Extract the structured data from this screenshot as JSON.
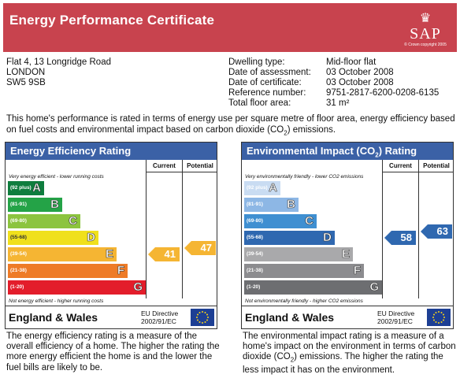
{
  "header": {
    "title": "Energy Performance Certificate",
    "logo_text": "SAP",
    "logo_copyright": "© Crown copyright 2005"
  },
  "address": [
    "Flat 4, 13 Longridge Road",
    "LONDON",
    "SW5 9SB"
  ],
  "details": [
    {
      "label": "Dwelling type:",
      "value": "Mid-floor flat"
    },
    {
      "label": "Date of assessment:",
      "value": "03 October 2008"
    },
    {
      "label": "Date of certificate:",
      "value": "03 October 2008"
    },
    {
      "label": "Reference number:",
      "value": "9751-2817-6200-0208-6135"
    },
    {
      "label": "Total floor area:",
      "value": "31 m²"
    }
  ],
  "intro": {
    "before": "This home's performance is rated in terms of energy use per square metre of floor area, energy efficiency based on fuel costs and environmental impact based on carbon dioxide (CO",
    "sub": "2",
    "after": ") emissions."
  },
  "columns": {
    "current": "Current",
    "potential": "Potential"
  },
  "energy": {
    "title": "Energy Efficiency Rating",
    "top_note": "Very energy efficient - lower running costs",
    "bottom_note": "Not energy efficient - higher running costs",
    "bands": [
      {
        "range": "(92 plus)",
        "letter": "A",
        "color": "#0f7d3e"
      },
      {
        "range": "(81-91)",
        "letter": "B",
        "color": "#24a347"
      },
      {
        "range": "(69-80)",
        "letter": "C",
        "color": "#8cc43f"
      },
      {
        "range": "(55-68)",
        "letter": "D",
        "color": "#f0e01c"
      },
      {
        "range": "(39-54)",
        "letter": "E",
        "color": "#f5b533"
      },
      {
        "range": "(21-38)",
        "letter": "F",
        "color": "#ee7b27"
      },
      {
        "range": "(1-20)",
        "letter": "G",
        "color": "#e31d2b"
      }
    ],
    "current": {
      "value": "41",
      "band_index": 4,
      "color": "#f5b533"
    },
    "potential": {
      "value": "47",
      "band_index": 4,
      "color": "#f5b533"
    },
    "region": "England & Wales",
    "directive": [
      "EU Directive",
      "2002/91/EC"
    ],
    "description": "The energy efficiency rating is a measure of the overall efficiency of a home. The higher the rating the more energy efficient the home is and the lower the fuel bills are likely to be."
  },
  "environment": {
    "title_before": "Environmental Impact (CO",
    "title_sub": "2",
    "title_after": ") Rating",
    "top_note": "Very environmentally friendly - lower CO2 emissions",
    "bottom_note": "Not environmentally friendly - higher CO2 emissions",
    "bands": [
      {
        "range": "(92 plus)",
        "letter": "A",
        "color": "#c9dcf2"
      },
      {
        "range": "(81-91)",
        "letter": "B",
        "color": "#8db7e5"
      },
      {
        "range": "(69-80)",
        "letter": "C",
        "color": "#3f8fd1"
      },
      {
        "range": "(55-68)",
        "letter": "D",
        "color": "#2f68b0"
      },
      {
        "range": "(39-54)",
        "letter": "E",
        "color": "#a9a9ab"
      },
      {
        "range": "(21-38)",
        "letter": "F",
        "color": "#8c8c8f"
      },
      {
        "range": "(1-20)",
        "letter": "G",
        "color": "#6d6e71"
      }
    ],
    "current": {
      "value": "58",
      "band_index": 3,
      "color": "#2f68b0"
    },
    "potential": {
      "value": "63",
      "band_index": 3,
      "color": "#2f68b0"
    },
    "region": "England & Wales",
    "directive": [
      "EU Directive",
      "2002/91/EC"
    ],
    "description_before": "The environmental impact rating is a measure of a home's impact on the environment in terms of carbon dioxide (CO",
    "description_sub": "2",
    "description_after": ") emissions. The higher the rating the less impact it has on the environment."
  }
}
